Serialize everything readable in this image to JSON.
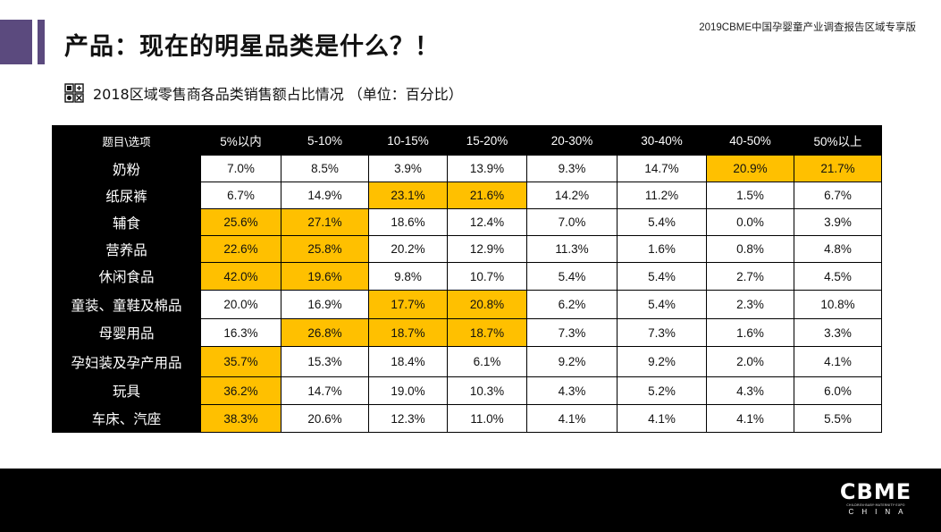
{
  "header": {
    "report_name": "2019CBME中国孕婴童产业调查报告区域专享版",
    "title": "产品：现在的明星品类是什么？！",
    "subtitle": "2018区域零售商各品类销售额占比情况 （单位：百分比）"
  },
  "colors": {
    "accent_bar": "#5b4a7e",
    "highlight": "#ffc000",
    "header_bg": "#000000"
  },
  "table": {
    "corner_label": "题目\\选项",
    "columns": [
      "5%以内",
      "5-10%",
      "10-15%",
      "15-20%",
      "20-30%",
      "30-40%",
      "40-50%",
      "50%以上"
    ],
    "rows": [
      {
        "label": "奶粉",
        "values": [
          "7.0%",
          "8.5%",
          "3.9%",
          "13.9%",
          "9.3%",
          "14.7%",
          "20.9%",
          "21.7%"
        ],
        "highlight": [
          6,
          7
        ]
      },
      {
        "label": "纸尿裤",
        "values": [
          "6.7%",
          "14.9%",
          "23.1%",
          "21.6%",
          "14.2%",
          "11.2%",
          "1.5%",
          "6.7%"
        ],
        "highlight": [
          2,
          3
        ]
      },
      {
        "label": "辅食",
        "values": [
          "25.6%",
          "27.1%",
          "18.6%",
          "12.4%",
          "7.0%",
          "5.4%",
          "0.0%",
          "3.9%"
        ],
        "highlight": [
          0,
          1
        ]
      },
      {
        "label": "营养品",
        "values": [
          "22.6%",
          "25.8%",
          "20.2%",
          "12.9%",
          "11.3%",
          "1.6%",
          "0.8%",
          "4.8%"
        ],
        "highlight": [
          0,
          1
        ]
      },
      {
        "label": "休闲食品",
        "values": [
          "42.0%",
          "19.6%",
          "9.8%",
          "10.7%",
          "5.4%",
          "5.4%",
          "2.7%",
          "4.5%"
        ],
        "highlight": [
          0,
          1
        ]
      },
      {
        "label": "童装、童鞋及棉品",
        "values": [
          "20.0%",
          "16.9%",
          "17.7%",
          "20.8%",
          "6.2%",
          "5.4%",
          "2.3%",
          "10.8%"
        ],
        "highlight": [
          2,
          3
        ]
      },
      {
        "label": "母婴用品",
        "values": [
          "16.3%",
          "26.8%",
          "18.7%",
          "18.7%",
          "7.3%",
          "7.3%",
          "1.6%",
          "3.3%"
        ],
        "highlight": [
          1,
          2,
          3
        ]
      },
      {
        "label": "孕妇装及孕产用品",
        "values": [
          "35.7%",
          "15.3%",
          "18.4%",
          "6.1%",
          "9.2%",
          "9.2%",
          "2.0%",
          "4.1%"
        ],
        "highlight": [
          0
        ]
      },
      {
        "label": "玩具",
        "values": [
          "36.2%",
          "14.7%",
          "19.0%",
          "10.3%",
          "4.3%",
          "5.2%",
          "4.3%",
          "6.0%"
        ],
        "highlight": [
          0
        ]
      },
      {
        "label": "车床、汽座",
        "values": [
          "38.3%",
          "20.6%",
          "12.3%",
          "11.0%",
          "4.1%",
          "4.1%",
          "4.1%",
          "5.5%"
        ],
        "highlight": [
          0
        ]
      }
    ]
  },
  "footer": {
    "logo_text": "CBME",
    "logo_tagline": "CHILDREN·BABY·MATERNITY·EXPO",
    "logo_sub": "CHINA"
  }
}
